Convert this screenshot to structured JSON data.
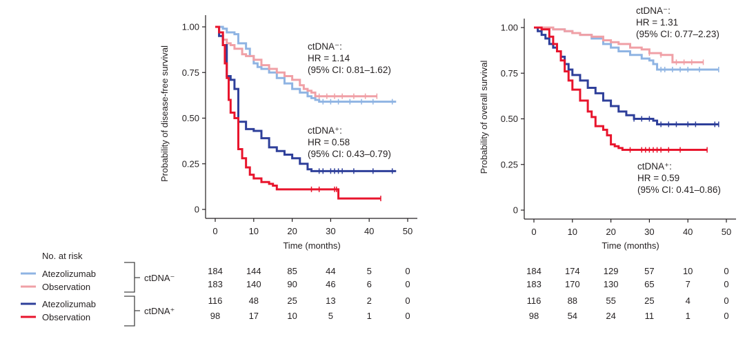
{
  "legend": {
    "title": "No. at risk",
    "items": [
      {
        "label": "Atezolizumab",
        "color": "#8fb4e3",
        "group": "ctDNA−"
      },
      {
        "label": "Observation",
        "color": "#f0a0a6",
        "group": "ctDNA−"
      },
      {
        "label": "Atezolizumab",
        "color": "#2e3f9a",
        "group": "ctDNA+"
      },
      {
        "label": "Observation",
        "color": "#e8142c",
        "group": "ctDNA+"
      }
    ],
    "groups": [
      "ctDNA⁻",
      "ctDNA⁺"
    ]
  },
  "chart_data": [
    {
      "type": "line",
      "subtype": "kaplan-meier",
      "ylabel": "Probability of disease-free survival",
      "xlabel": "Time (months)",
      "xlim": [
        0,
        50
      ],
      "ylim": [
        0,
        1
      ],
      "xticks": [
        "0",
        "10",
        "20",
        "30",
        "40",
        "50"
      ],
      "yticks": [
        "0",
        "0.25",
        "0.50",
        "0.75",
        "1.00"
      ],
      "annotations": [
        {
          "lines": [
            "ctDNA⁻:",
            "HR = 1.14",
            "(95% CI: 0.81–1.62)"
          ],
          "position": "upper-right"
        },
        {
          "lines": [
            "ctDNA⁺:",
            "HR = 0.58",
            "(95% CI: 0.43–0.79)"
          ],
          "position": "middle-right"
        }
      ],
      "series": [
        {
          "name": "Atezolizumab ctDNA−",
          "color": "#8fb4e3",
          "x": [
            0,
            2,
            3,
            5,
            6,
            8,
            9,
            10,
            11,
            12,
            14,
            16,
            18,
            20,
            22,
            24,
            25,
            26,
            27,
            30,
            35,
            40,
            47
          ],
          "y": [
            1.0,
            0.99,
            0.97,
            0.96,
            0.91,
            0.88,
            0.84,
            0.8,
            0.78,
            0.77,
            0.75,
            0.72,
            0.69,
            0.66,
            0.64,
            0.62,
            0.61,
            0.6,
            0.59,
            0.59,
            0.59,
            0.59,
            0.59
          ],
          "censor_x": [
            28,
            30,
            32,
            35,
            38,
            41,
            46
          ]
        },
        {
          "name": "Observation ctDNA−",
          "color": "#f0a0a6",
          "x": [
            0,
            1,
            2,
            3,
            4,
            5,
            7,
            8,
            10,
            12,
            14,
            16,
            18,
            20,
            22,
            23,
            24,
            25,
            26,
            27,
            30,
            35,
            42
          ],
          "y": [
            1.0,
            0.97,
            0.93,
            0.91,
            0.9,
            0.88,
            0.85,
            0.84,
            0.82,
            0.79,
            0.77,
            0.75,
            0.73,
            0.71,
            0.68,
            0.66,
            0.65,
            0.64,
            0.62,
            0.62,
            0.62,
            0.62,
            0.62
          ],
          "censor_x": [
            27,
            29,
            31,
            33,
            36,
            39,
            42
          ]
        },
        {
          "name": "Atezolizumab ctDNA+",
          "color": "#2e3f9a",
          "x": [
            0,
            1,
            2,
            3,
            4,
            5,
            6,
            8,
            10,
            12,
            14,
            16,
            18,
            20,
            22,
            24,
            25,
            26,
            30,
            35,
            40,
            47
          ],
          "y": [
            1.0,
            0.95,
            0.9,
            0.73,
            0.71,
            0.66,
            0.48,
            0.44,
            0.43,
            0.39,
            0.34,
            0.32,
            0.3,
            0.28,
            0.25,
            0.22,
            0.21,
            0.21,
            0.21,
            0.21,
            0.21,
            0.21
          ],
          "censor_x": [
            27,
            28,
            30,
            31,
            32,
            33,
            36,
            41,
            46
          ]
        },
        {
          "name": "Observation ctDNA+",
          "color": "#e8142c",
          "x": [
            0,
            1,
            2,
            2.5,
            3,
            3.5,
            4,
            5,
            6,
            7,
            8,
            9,
            10,
            12,
            14,
            15,
            16,
            20,
            25,
            30,
            32,
            43
          ],
          "y": [
            1.0,
            0.97,
            0.9,
            0.8,
            0.72,
            0.6,
            0.53,
            0.5,
            0.33,
            0.28,
            0.23,
            0.19,
            0.17,
            0.15,
            0.14,
            0.13,
            0.11,
            0.11,
            0.11,
            0.11,
            0.06,
            0.06
          ],
          "censor_x": [
            25,
            27,
            31,
            31.5,
            43
          ]
        }
      ],
      "risk_table": {
        "times": [
          0,
          10,
          20,
          30,
          40,
          50
        ],
        "rows": [
          [
            184,
            144,
            85,
            44,
            5,
            0
          ],
          [
            183,
            140,
            90,
            46,
            6,
            0
          ],
          [
            116,
            48,
            25,
            13,
            2,
            0
          ],
          [
            98,
            17,
            10,
            5,
            1,
            0
          ]
        ]
      }
    },
    {
      "type": "line",
      "subtype": "kaplan-meier",
      "ylabel": "Probability of overall survival",
      "xlabel": "Time (months)",
      "xlim": [
        0,
        50
      ],
      "ylim": [
        0,
        1
      ],
      "xticks": [
        "0",
        "10",
        "20",
        "30",
        "40",
        "50"
      ],
      "yticks": [
        "0",
        "0.25",
        "0.50",
        "0.75",
        "1.00"
      ],
      "annotations": [
        {
          "lines": [
            "ctDNA⁻:",
            "HR = 1.31",
            "(95% CI: 0.77–2.23)"
          ],
          "position": "top-right"
        },
        {
          "lines": [
            "ctDNA⁺:",
            "HR = 0.59",
            "(95% CI: 0.41–0.86)"
          ],
          "position": "lower-right"
        }
      ],
      "series": [
        {
          "name": "Atezolizumab ctDNA−",
          "color": "#8fb4e3",
          "x": [
            0,
            5,
            8,
            10,
            12,
            15,
            18,
            20,
            22,
            25,
            28,
            30,
            31,
            32,
            35,
            40,
            48
          ],
          "y": [
            1.0,
            0.99,
            0.98,
            0.97,
            0.96,
            0.94,
            0.91,
            0.89,
            0.87,
            0.85,
            0.83,
            0.82,
            0.8,
            0.77,
            0.77,
            0.77,
            0.77
          ],
          "censor_x": [
            33,
            34,
            36,
            38,
            40,
            43,
            48
          ]
        },
        {
          "name": "Observation ctDNA−",
          "color": "#f0a0a6",
          "x": [
            0,
            5,
            8,
            10,
            12,
            15,
            18,
            20,
            22,
            25,
            28,
            30,
            33,
            35,
            36,
            40,
            44
          ],
          "y": [
            1.0,
            0.99,
            0.98,
            0.97,
            0.96,
            0.95,
            0.93,
            0.92,
            0.91,
            0.89,
            0.88,
            0.86,
            0.85,
            0.85,
            0.81,
            0.81,
            0.81
          ],
          "censor_x": [
            30,
            33,
            37,
            39,
            41,
            44
          ]
        },
        {
          "name": "Atezolizumab ctDNA+",
          "color": "#2e3f9a",
          "x": [
            0,
            1,
            2,
            3,
            4,
            5,
            6,
            7,
            8,
            9,
            10,
            12,
            14,
            16,
            18,
            20,
            22,
            24,
            26,
            28,
            30,
            31,
            32,
            35,
            40,
            48
          ],
          "y": [
            1.0,
            0.98,
            0.96,
            0.94,
            0.91,
            0.89,
            0.87,
            0.84,
            0.8,
            0.77,
            0.74,
            0.71,
            0.67,
            0.64,
            0.6,
            0.57,
            0.54,
            0.52,
            0.5,
            0.5,
            0.5,
            0.49,
            0.47,
            0.47,
            0.47,
            0.47
          ],
          "censor_x": [
            26,
            28,
            30,
            33,
            35,
            37,
            40,
            42,
            47,
            48
          ]
        },
        {
          "name": "Observation ctDNA+",
          "color": "#e8142c",
          "x": [
            0,
            2,
            4,
            5,
            6,
            7,
            8,
            9,
            10,
            12,
            14,
            15,
            16,
            18,
            19,
            20,
            21,
            22,
            23,
            30,
            35,
            40,
            45
          ],
          "y": [
            1.0,
            0.99,
            0.95,
            0.91,
            0.87,
            0.82,
            0.76,
            0.71,
            0.66,
            0.6,
            0.54,
            0.51,
            0.46,
            0.44,
            0.41,
            0.36,
            0.35,
            0.34,
            0.33,
            0.33,
            0.33,
            0.33,
            0.33
          ],
          "censor_x": [
            25,
            28,
            29,
            30,
            31,
            32,
            33,
            35,
            38,
            45
          ]
        }
      ],
      "risk_table": {
        "times": [
          0,
          10,
          20,
          30,
          40,
          50
        ],
        "rows": [
          [
            184,
            174,
            129,
            57,
            10,
            0
          ],
          [
            183,
            170,
            130,
            65,
            7,
            0
          ],
          [
            116,
            88,
            55,
            25,
            4,
            0
          ],
          [
            98,
            54,
            24,
            11,
            1,
            0
          ]
        ]
      }
    }
  ]
}
